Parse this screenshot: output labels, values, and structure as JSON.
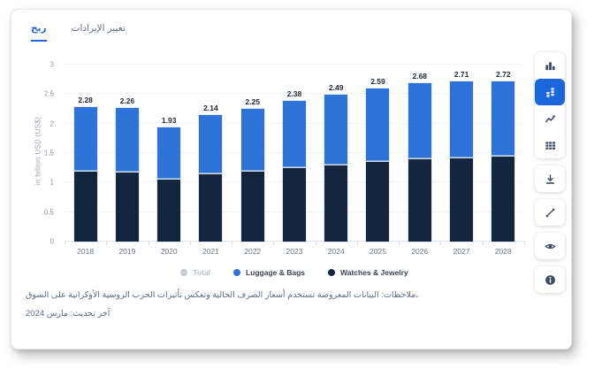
{
  "tabs": [
    {
      "label": "ربح",
      "active": true
    },
    {
      "label": "تغيير الإيرادات",
      "active": false
    }
  ],
  "chart_data": {
    "type": "bar",
    "stacked": true,
    "categories": [
      "2018",
      "2019",
      "2020",
      "2021",
      "2022",
      "2023",
      "2024",
      "2025",
      "2026",
      "2027",
      "2028"
    ],
    "series": [
      {
        "name": "Luggage & Bags",
        "color": "#2d73d7",
        "values": [
          1.08,
          1.08,
          0.87,
          0.99,
          1.05,
          1.12,
          1.18,
          1.23,
          1.27,
          1.28,
          1.27
        ]
      },
      {
        "name": "Watches & Jewelry",
        "color": "#13263e",
        "values": [
          1.2,
          1.18,
          1.06,
          1.15,
          1.2,
          1.26,
          1.31,
          1.36,
          1.41,
          1.43,
          1.45
        ]
      }
    ],
    "totals": [
      2.28,
      2.26,
      1.93,
      2.14,
      2.25,
      2.38,
      2.49,
      2.59,
      2.68,
      2.71,
      2.72
    ],
    "ylabel": "in billion USD (US$)",
    "ylim": [
      0,
      3
    ],
    "yticks": [
      0,
      0.5,
      1,
      1.5,
      2,
      2.5,
      3
    ],
    "grid": true,
    "legend_position": "bottom",
    "legend_items": [
      {
        "label": "Total",
        "color": "#c6cbd2",
        "muted": true
      },
      {
        "label": "Luggage & Bags",
        "color": "#2d73d7",
        "muted": false
      },
      {
        "label": "Watches & Jewelry",
        "color": "#13263e",
        "muted": false
      }
    ]
  },
  "notes": {
    "line1": "ملاحظات: البيانات المعروضة تستخدم أسعار الصرف الحالية وتعكس تأثيرات الحرب الروسية الأوكرانية على السوق،",
    "line2": "آخر تحديث: مارس 2024"
  },
  "toolbar": {
    "buttons": [
      {
        "icon": "column-chart-icon",
        "active": false
      },
      {
        "icon": "stacked-bar-chart-icon",
        "active": true
      },
      {
        "icon": "line-chart-icon",
        "active": false
      },
      {
        "icon": "table-icon",
        "active": false
      },
      {
        "icon": "download-icon",
        "active": false
      },
      {
        "icon": "expand-icon",
        "active": false
      },
      {
        "icon": "eye-icon",
        "active": false
      },
      {
        "icon": "info-icon",
        "active": false
      }
    ]
  },
  "colors": {
    "accent_blue": "#2d73d7",
    "dark_navy": "#13263e",
    "active_button_bg": "#1a66dd",
    "tab_active": "#2166e0"
  }
}
